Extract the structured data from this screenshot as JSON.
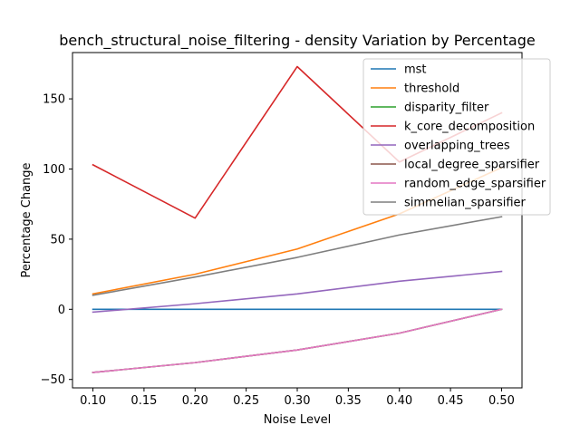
{
  "chart_data": {
    "type": "line",
    "title": "bench_structural_noise_filtering - density Variation by Percentage",
    "xlabel": "Noise Level",
    "ylabel": "Percentage Change",
    "x": [
      0.1,
      0.2,
      0.3,
      0.4,
      0.5
    ],
    "xlim": [
      0.08,
      0.52
    ],
    "ylim": [
      -56,
      183
    ],
    "xticks": [
      "0.10",
      "0.15",
      "0.20",
      "0.25",
      "0.30",
      "0.35",
      "0.40",
      "0.45",
      "0.50"
    ],
    "yticks": [
      "−50",
      "0",
      "50",
      "100",
      "150"
    ],
    "ytick_values": [
      -50,
      0,
      50,
      100,
      150
    ],
    "grid": false,
    "legend_position": "top-right",
    "series": [
      {
        "name": "mst",
        "color": "#1f77b4",
        "values": [
          0,
          0,
          0,
          0,
          0
        ]
      },
      {
        "name": "threshold",
        "color": "#ff7f0e",
        "values": [
          11,
          25,
          43,
          68,
          101
        ]
      },
      {
        "name": "disparity_filter",
        "color": "#2ca02c",
        "values": [
          -45,
          -38,
          -29,
          -17,
          0
        ]
      },
      {
        "name": "k_core_decomposition",
        "color": "#d62728",
        "values": [
          103,
          65,
          173,
          105,
          140
        ]
      },
      {
        "name": "overlapping_trees",
        "color": "#9467bd",
        "values": [
          -2,
          4,
          11,
          20,
          27
        ]
      },
      {
        "name": "local_degree_sparsifier",
        "color": "#8c564b",
        "values": [
          -45,
          -38,
          -29,
          -17,
          0
        ]
      },
      {
        "name": "random_edge_sparsifier",
        "color": "#e377c2",
        "values": [
          -45,
          -38,
          -29,
          -17,
          0
        ]
      },
      {
        "name": "simmelian_sparsifier",
        "color": "#7f7f7f",
        "values": [
          10,
          23,
          37,
          53,
          66
        ]
      }
    ]
  }
}
